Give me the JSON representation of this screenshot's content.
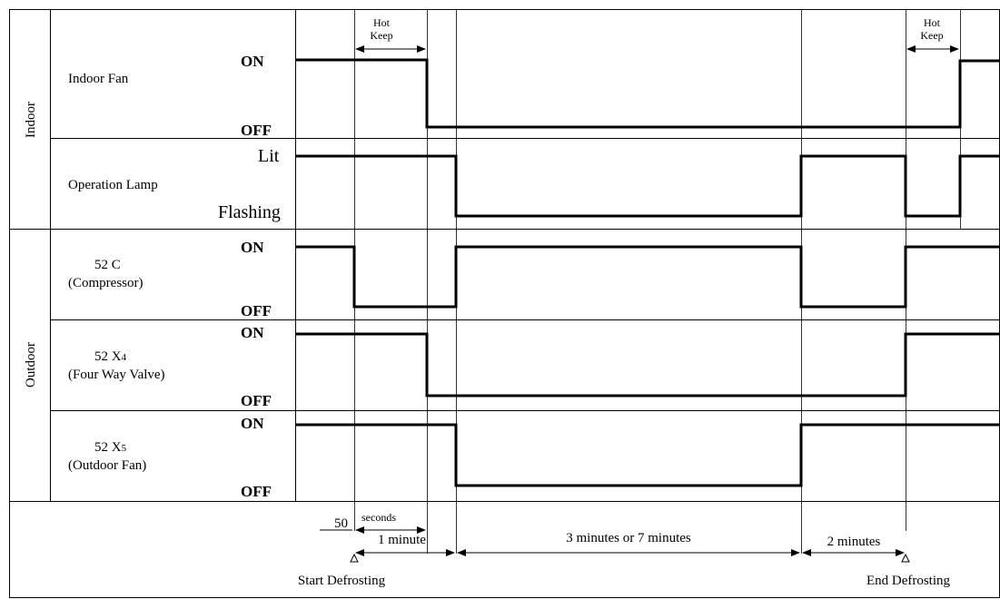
{
  "groups": {
    "indoor": "Indoor",
    "outdoor": "Outdoor"
  },
  "signals": {
    "indoor_fan": {
      "label": "Indoor Fan",
      "high": "ON",
      "low": "OFF"
    },
    "operation_lamp": {
      "label": "Operation Lamp",
      "high": "Lit",
      "low": "Flashing"
    },
    "compressor": {
      "name": "52 C",
      "desc": "(Compressor)",
      "high": "ON",
      "low": "OFF"
    },
    "four_way_valve": {
      "name": "52 X",
      "sub": "4",
      "desc": "(Four Way Valve)",
      "high": "ON",
      "low": "OFF"
    },
    "outdoor_fan": {
      "name": "52 X",
      "sub": "5",
      "desc": "(Outdoor Fan)",
      "high": "ON",
      "low": "OFF"
    }
  },
  "hot_keep": {
    "line1": "Hot",
    "line2": "Keep"
  },
  "timings": {
    "t50": "50",
    "seconds": "seconds",
    "one_minute": "1 minute",
    "three_or_seven": "3 minutes or 7 minutes",
    "two_minutes": "2 minutes"
  },
  "events": {
    "start": "Start Defrosting",
    "end": "End Defrosting"
  }
}
